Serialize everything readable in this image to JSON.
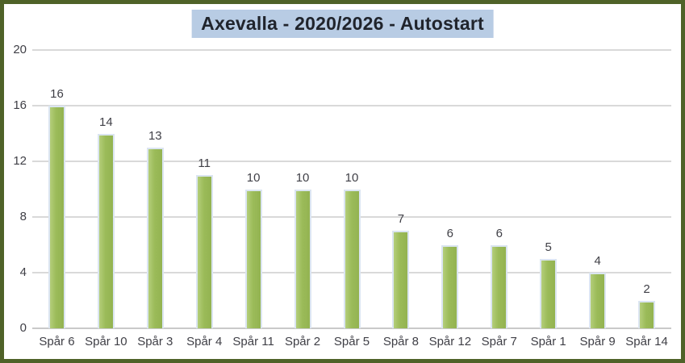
{
  "chart_data": {
    "type": "bar",
    "title": "Axevalla - 2020/2026 - Autostart",
    "categories": [
      "Spår 6",
      "Spår 10",
      "Spår 3",
      "Spår 4",
      "Spår 11",
      "Spår 2",
      "Spår 5",
      "Spår 8",
      "Spår 12",
      "Spår 7",
      "Spår 1",
      "Spår 9",
      "Spår 14"
    ],
    "values": [
      16,
      14,
      13,
      11,
      10,
      10,
      10,
      7,
      6,
      6,
      5,
      4,
      2
    ],
    "data_labels": [
      16,
      14,
      13,
      11,
      10,
      10,
      10,
      7,
      6,
      6,
      5,
      4,
      2
    ],
    "xlabel": "",
    "ylabel": "",
    "ylim": [
      0,
      20
    ],
    "yticks": [
      0,
      4,
      8,
      12,
      16,
      20
    ],
    "grid": true,
    "legend_position": "none",
    "colors": {
      "bar_fill": "#9bbb59",
      "bar_fill_light": "#b4ce7a",
      "bar_fill_dark": "#93b351",
      "bar_border": "#dbe5f1",
      "gridline": "#d9d9d9",
      "axis_line": "#c9c9c9",
      "frame_border": "#4f6228",
      "title_background": "#b8cce4",
      "title_text": "#20242c",
      "label_text": "#3f3f46",
      "background": "#ffffff"
    }
  }
}
